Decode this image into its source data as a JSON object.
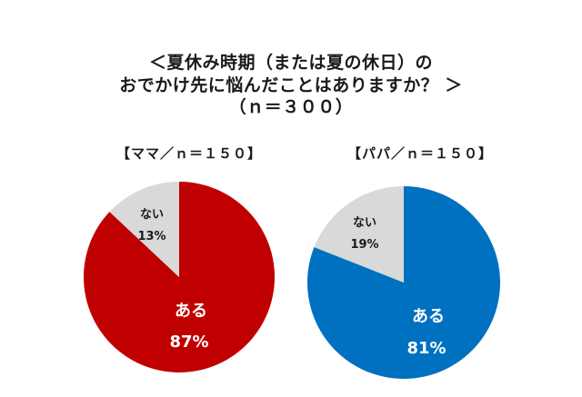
{
  "title": {
    "line1": "＜夏休み時期（または夏の休日）の",
    "line2": "おでかけ先に悩んだことはありますか？ ＞",
    "line3": "（ｎ＝３００）"
  },
  "panels": [
    {
      "label": "【ママ／ｎ＝１５０】"
    },
    {
      "label": "【パパ／ｎ＝１５０】"
    }
  ],
  "colors": {
    "mama_yes": "#C00000",
    "papa_yes": "#0070C0",
    "no": "#D9D9D9"
  },
  "chart_data": [
    {
      "type": "pie",
      "title": "【ママ／ｎ＝１５０】",
      "categories": [
        "ある",
        "ない"
      ],
      "values": [
        87,
        13
      ],
      "unit": "%",
      "colors": [
        "#C00000",
        "#D9D9D9"
      ],
      "labels": [
        {
          "name": "ある",
          "value": "87%"
        },
        {
          "name": "ない",
          "value": "13%"
        }
      ]
    },
    {
      "type": "pie",
      "title": "【パパ／ｎ＝１５０】",
      "categories": [
        "ある",
        "ない"
      ],
      "values": [
        81,
        19
      ],
      "unit": "%",
      "colors": [
        "#0070C0",
        "#D9D9D9"
      ],
      "labels": [
        {
          "name": "ある",
          "value": "81%"
        },
        {
          "name": "ない",
          "value": "19%"
        }
      ]
    }
  ]
}
